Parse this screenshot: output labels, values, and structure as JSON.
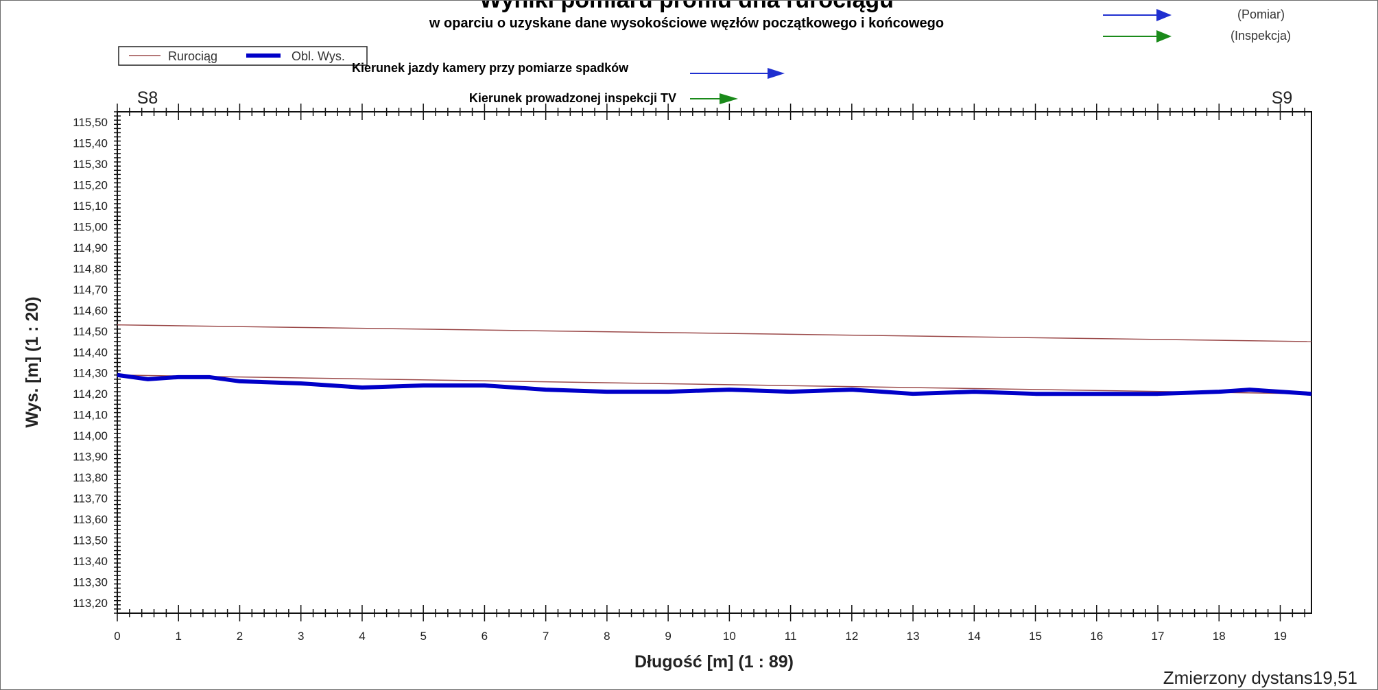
{
  "chart_data": {
    "type": "line",
    "title": "Wyniki pomiaru profilu dna rurociągu",
    "subtitle": "w oparciu o uzyskane dane wysokościowe węzłów początkowego i końcowego",
    "xlabel": "Długość [m] (1 : 89)",
    "ylabel": "Wys. [m] (1 : 20)",
    "xlim": [
      0,
      19.51
    ],
    "ylim": [
      113.15,
      115.55
    ],
    "x_ticks": [
      "0",
      "1",
      "2",
      "3",
      "4",
      "5",
      "6",
      "7",
      "8",
      "9",
      "10",
      "11",
      "12",
      "13",
      "14",
      "15",
      "16",
      "17",
      "18",
      "19"
    ],
    "y_ticks": [
      "113,20",
      "113,30",
      "113,40",
      "113,50",
      "113,60",
      "113,70",
      "113,80",
      "113,90",
      "114,00",
      "114,10",
      "114,20",
      "114,30",
      "114,40",
      "114,50",
      "114,60",
      "114,70",
      "114,80",
      "114,90",
      "115,00",
      "115,10",
      "115,20",
      "115,30",
      "115,40",
      "115,50"
    ],
    "grid": false,
    "start_node": "S8",
    "end_node": "S9",
    "series": [
      {
        "name": "Rurociąg",
        "color": "#9b4a4a",
        "x": [
          0,
          19.51
        ],
        "y": [
          114.53,
          114.45
        ],
        "offset_x": [
          0,
          19.51
        ],
        "offset_y": [
          114.29,
          114.2
        ]
      },
      {
        "name": "Obl. Wys.",
        "color": "#0000c8",
        "x": [
          0,
          0.5,
          1,
          1.5,
          2,
          3,
          4,
          5,
          6,
          7,
          8,
          9,
          10,
          11,
          12,
          13,
          14,
          15,
          16,
          17,
          18,
          18.5,
          19,
          19.51
        ],
        "y": [
          114.29,
          114.27,
          114.28,
          114.28,
          114.26,
          114.25,
          114.23,
          114.24,
          114.24,
          114.22,
          114.21,
          114.21,
          114.22,
          114.21,
          114.22,
          114.2,
          114.21,
          114.2,
          114.2,
          114.2,
          114.21,
          114.22,
          114.21,
          114.2
        ]
      }
    ],
    "legend_position": "top-left",
    "arrow_legend": {
      "measurement": {
        "text": "(Pomiar)",
        "color": "#1f2fd0"
      },
      "inspection": {
        "text": "(Inspekcja)",
        "color": "#1a8a1a"
      }
    },
    "directions": {
      "camera": {
        "text": "Kierunek jazdy kamery przy pomiarze spadków",
        "color": "#1f2fd0"
      },
      "tv": {
        "text": "Kierunek prowadzonej inspekcji TV",
        "color": "#1a8a1a"
      }
    },
    "measured_distance": "Zmierzony dystans19,51"
  }
}
